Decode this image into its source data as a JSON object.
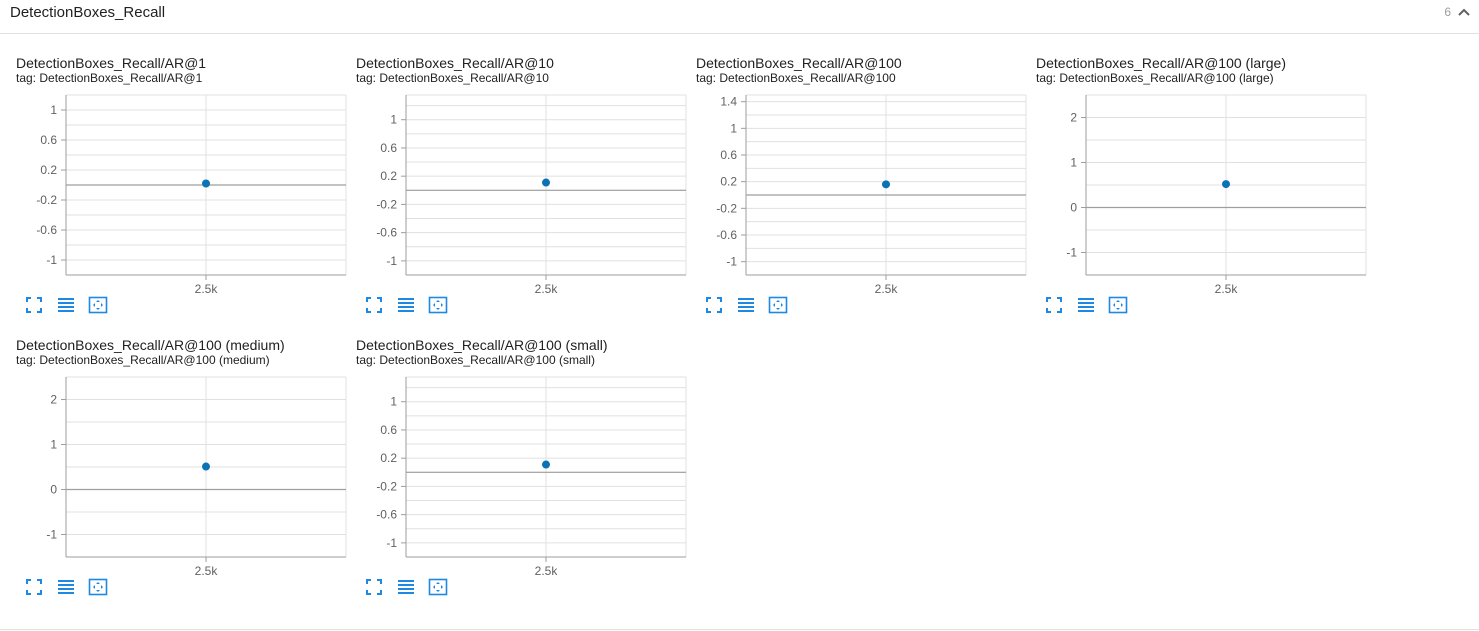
{
  "section": {
    "title": "DetectionBoxes_Recall",
    "count": "6",
    "collapse_icon": "chevron-up-icon"
  },
  "tools": {
    "icons": [
      "fullscreen-icon",
      "data-table-icon",
      "fit-domain-icon"
    ],
    "color": "#1e88e5"
  },
  "chart_data": [
    {
      "type": "scatter",
      "title": "DetectionBoxes_Recall/AR@1",
      "tag": "tag: DetectionBoxes_Recall/AR@1",
      "yticks": [
        "1",
        "0.6",
        "0.2",
        "-0.2",
        "-0.6",
        "-1"
      ],
      "xticks": [
        "2.5k"
      ],
      "points": [
        {
          "x": 2500,
          "y": 0.02
        }
      ],
      "ylim": [
        -1.2,
        1.2
      ],
      "color": "#0b72b5"
    },
    {
      "type": "scatter",
      "title": "DetectionBoxes_Recall/AR@10",
      "tag": "tag: DetectionBoxes_Recall/AR@10",
      "yticks": [
        "1",
        "0.6",
        "0.2",
        "-0.2",
        "-0.6",
        "-1"
      ],
      "xticks": [
        "2.5k"
      ],
      "points": [
        {
          "x": 2500,
          "y": 0.11
        }
      ],
      "ylim": [
        -1.2,
        1.35
      ],
      "color": "#0b72b5"
    },
    {
      "type": "scatter",
      "title": "DetectionBoxes_Recall/AR@100",
      "tag": "tag: DetectionBoxes_Recall/AR@100",
      "yticks": [
        "1.4",
        "1",
        "0.6",
        "0.2",
        "-0.2",
        "-0.6",
        "-1"
      ],
      "xticks": [
        "2.5k"
      ],
      "points": [
        {
          "x": 2500,
          "y": 0.16
        }
      ],
      "ylim": [
        -1.2,
        1.5
      ],
      "color": "#0b72b5"
    },
    {
      "type": "scatter",
      "title": "DetectionBoxes_Recall/AR@100 (large)",
      "tag": "tag: DetectionBoxes_Recall/AR@100 (large)",
      "yticks": [
        "2",
        "1",
        "0",
        "-1"
      ],
      "xticks": [
        "2.5k"
      ],
      "points": [
        {
          "x": 2500,
          "y": 0.52
        }
      ],
      "ylim": [
        -1.5,
        2.5
      ],
      "color": "#0b72b5"
    },
    {
      "type": "scatter",
      "title": "DetectionBoxes_Recall/AR@100 (medium)",
      "tag": "tag: DetectionBoxes_Recall/AR@100 (medium)",
      "yticks": [
        "2",
        "1",
        "0",
        "-1"
      ],
      "xticks": [
        "2.5k"
      ],
      "points": [
        {
          "x": 2500,
          "y": 0.51
        }
      ],
      "ylim": [
        -1.5,
        2.5
      ],
      "color": "#0b72b5"
    },
    {
      "type": "scatter",
      "title": "DetectionBoxes_Recall/AR@100 (small)",
      "tag": "tag: DetectionBoxes_Recall/AR@100 (small)",
      "yticks": [
        "1",
        "0.6",
        "0.2",
        "-0.2",
        "-0.6",
        "-1"
      ],
      "xticks": [
        "2.5k"
      ],
      "points": [
        {
          "x": 2500,
          "y": 0.11
        }
      ],
      "ylim": [
        -1.2,
        1.35
      ],
      "color": "#0b72b5"
    }
  ]
}
